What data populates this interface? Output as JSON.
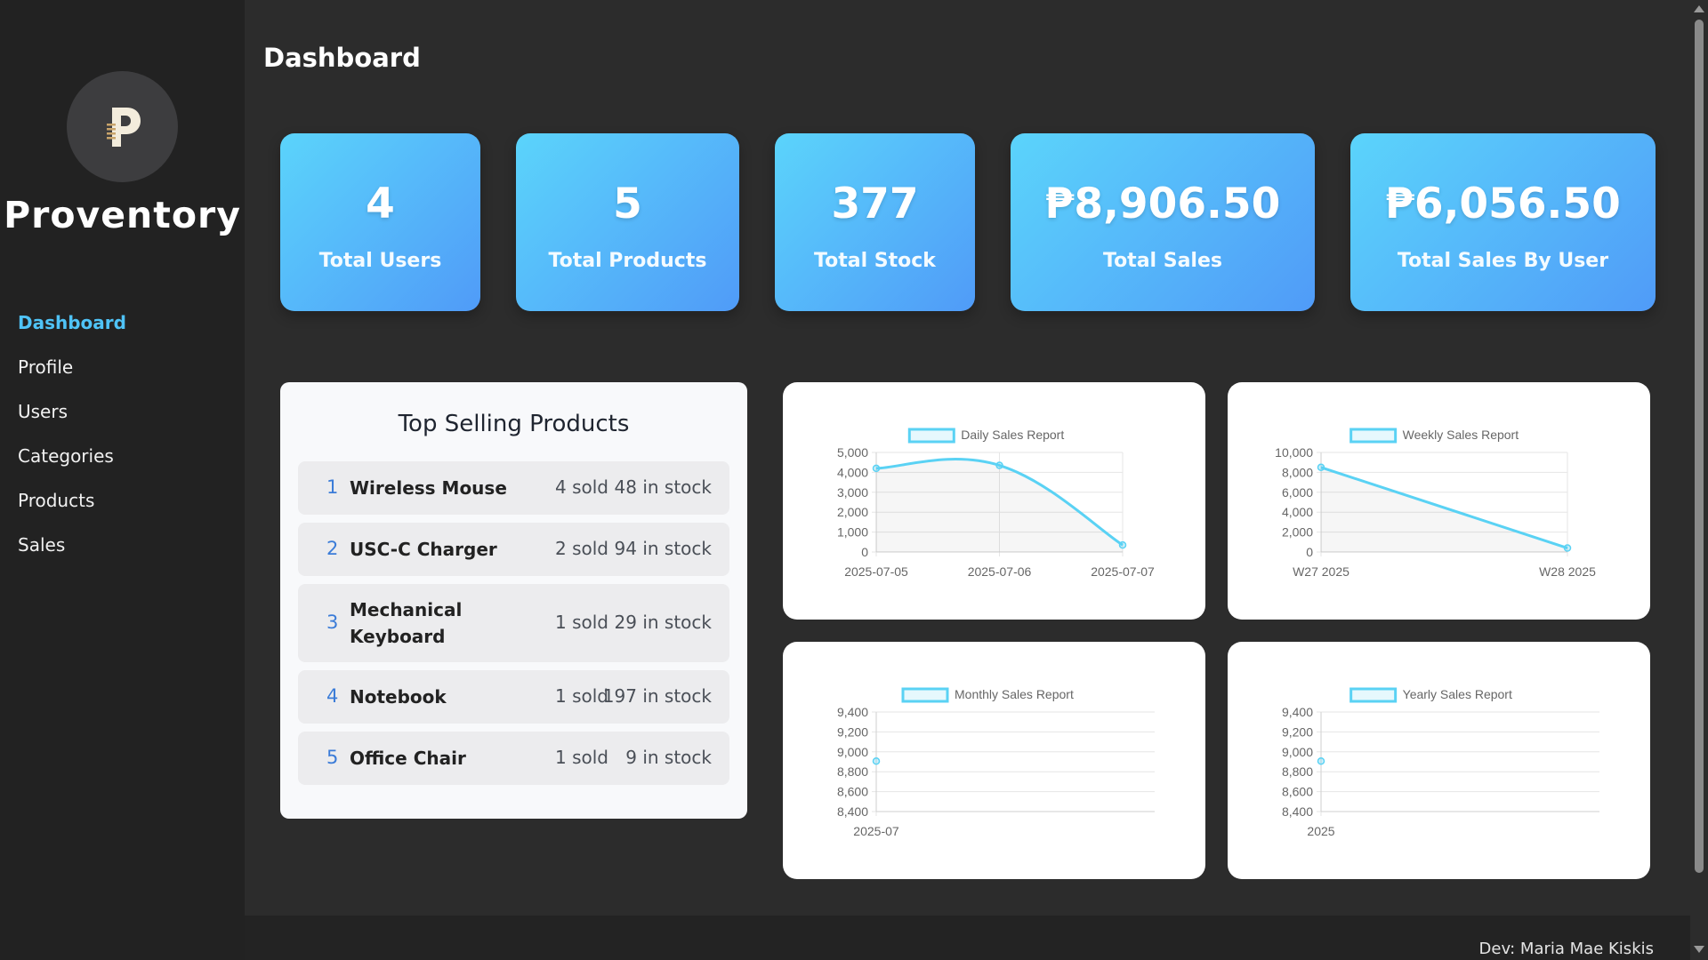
{
  "app": {
    "brand": "Proventory",
    "page_title": "Dashboard"
  },
  "nav": [
    {
      "label": "Dashboard",
      "active": true
    },
    {
      "label": "Profile"
    },
    {
      "label": "Users"
    },
    {
      "label": "Categories"
    },
    {
      "label": "Products"
    },
    {
      "label": "Sales"
    }
  ],
  "stats": [
    {
      "value": "4",
      "label": "Total Users"
    },
    {
      "value": "5",
      "label": "Total Products"
    },
    {
      "value": "377",
      "label": "Total Stock"
    },
    {
      "value": "₱8,906.50",
      "label": "Total Sales"
    },
    {
      "value": "₱6,056.50",
      "label": "Total Sales By User"
    }
  ],
  "top_selling": {
    "title": "Top Selling Products",
    "items": [
      {
        "rank": "1",
        "name": "Wireless Mouse",
        "sold": "4 sold",
        "stock": "48 in stock"
      },
      {
        "rank": "2",
        "name": "USC-C Charger",
        "sold": "2 sold",
        "stock": "94 in stock"
      },
      {
        "rank": "3",
        "name": "Mechanical Keyboard",
        "name_line1": "Mechanical",
        "name_line2": "Keyboard",
        "sold": "1 sold",
        "stock": "29 in stock"
      },
      {
        "rank": "4",
        "name": "Notebook",
        "sold": "1 sold",
        "stock": "197 in stock"
      },
      {
        "rank": "5",
        "name": "Office Chair",
        "sold": "1 sold",
        "stock": "9 in stock"
      }
    ]
  },
  "colors": {
    "accent": "#4fc3f7",
    "line": "#5ad2f4",
    "card_gradient_start": "#5bd4fb",
    "card_gradient_end": "#509bf8"
  },
  "chart_data": [
    {
      "type": "line",
      "series": [
        {
          "name": "Daily Sales Report",
          "values": [
            4200,
            4350,
            350
          ]
        }
      ],
      "categories": [
        "2025-07-05",
        "2025-07-06",
        "2025-07-07"
      ],
      "ylim": [
        0,
        5000
      ],
      "yticks": [
        "5,000",
        "4,000",
        "3,000",
        "2,000",
        "1,000",
        "0"
      ],
      "smooth": true,
      "fill": true,
      "grid": true,
      "legend": "top"
    },
    {
      "type": "line",
      "series": [
        {
          "name": "Weekly Sales Report",
          "values": [
            8500,
            400
          ]
        }
      ],
      "categories": [
        "W27 2025",
        "W28 2025"
      ],
      "ylim": [
        0,
        10000
      ],
      "yticks": [
        "10,000",
        "8,000",
        "6,000",
        "4,000",
        "2,000",
        "0"
      ],
      "smooth": false,
      "fill": true,
      "grid": true,
      "legend": "top"
    },
    {
      "type": "line",
      "series": [
        {
          "name": "Monthly Sales Report",
          "values": [
            8906.5
          ]
        }
      ],
      "categories": [
        "2025-07"
      ],
      "ylim": [
        8400,
        9400
      ],
      "yticks": [
        "9,400",
        "9,200",
        "9,000",
        "8,800",
        "8,600",
        "8,400"
      ],
      "grid": true,
      "legend": "top"
    },
    {
      "type": "line",
      "series": [
        {
          "name": "Yearly Sales Report",
          "values": [
            8906.5
          ]
        }
      ],
      "categories": [
        "2025"
      ],
      "ylim": [
        8400,
        9400
      ],
      "yticks": [
        "9,400",
        "9,200",
        "9,000",
        "8,800",
        "8,600",
        "8,400"
      ],
      "grid": true,
      "legend": "top"
    }
  ],
  "footer": {
    "text": "Dev: Maria Mae Kiskis"
  }
}
